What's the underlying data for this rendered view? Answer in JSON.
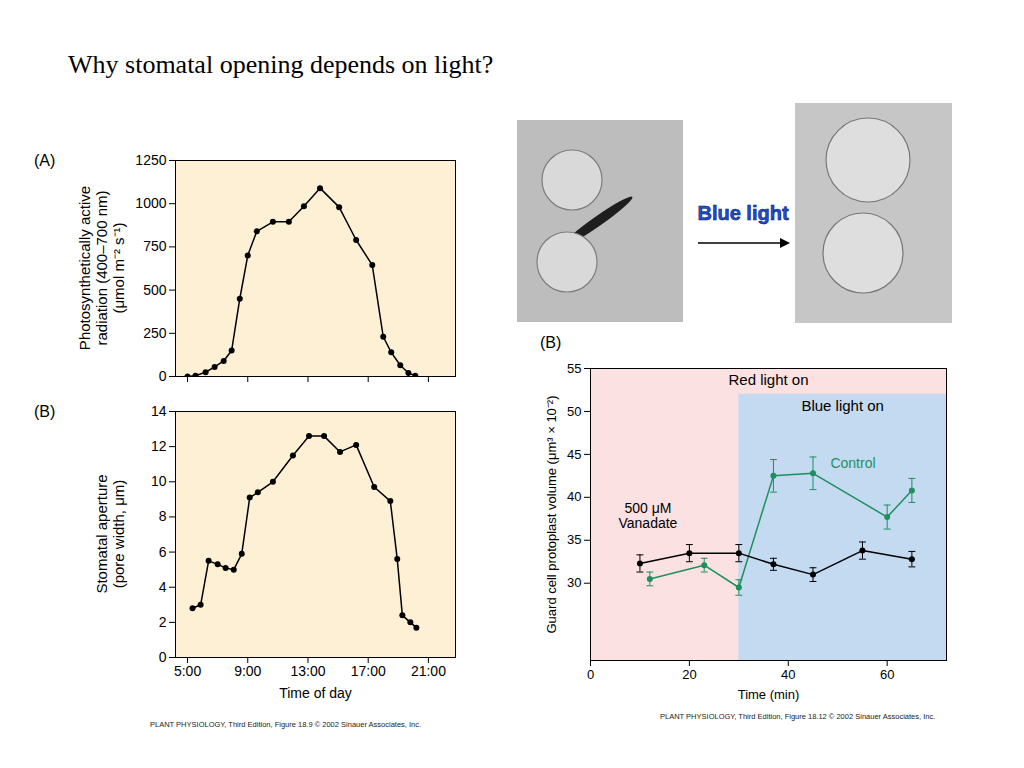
{
  "title": "Why stomatal opening depends on light?",
  "chart_data": [
    {
      "panel": "(A)",
      "type": "line",
      "ylabel": "Photosynthetically active radiation (400–700 nm) (μmol m⁻² s⁻¹)",
      "x": [
        5.0,
        5.53,
        6.2,
        6.8,
        7.4,
        7.93,
        8.47,
        9.0,
        9.6,
        10.67,
        11.73,
        12.73,
        13.8,
        15.07,
        16.2,
        17.27,
        18.0,
        18.53,
        19.13,
        19.67,
        20.13
      ],
      "series": [
        {
          "color": "#000000",
          "marker": "circle",
          "values": [
            0,
            5,
            25,
            55,
            90,
            150,
            450,
            700,
            840,
            895,
            895,
            985,
            1090,
            980,
            790,
            645,
            230,
            140,
            65,
            20,
            5
          ]
        }
      ],
      "xlim": [
        4.2,
        22.8
      ],
      "xticks": [
        {
          "value": 5,
          "label": "5:00"
        },
        {
          "value": 9,
          "label": "9:00"
        },
        {
          "value": 13,
          "label": "13:00"
        },
        {
          "value": 17,
          "label": "17:00"
        },
        {
          "value": 21,
          "label": "21:00"
        }
      ],
      "ylim": [
        0,
        1250
      ],
      "yticks": [
        0,
        250,
        500,
        750,
        1000,
        1250
      ],
      "tick_labels": "y"
    },
    {
      "panel": "(B)",
      "type": "line",
      "xlabel": "Time of day",
      "ylabel": "Stomatal aperture (pore width, μm)",
      "x": [
        5.33,
        5.87,
        6.4,
        7.0,
        7.53,
        8.07,
        8.6,
        9.13,
        9.67,
        10.67,
        12.0,
        13.07,
        14.07,
        15.13,
        16.2,
        17.4,
        18.47,
        18.93,
        19.27,
        19.8,
        20.2
      ],
      "series": [
        {
          "color": "#000000",
          "marker": "circle",
          "values": [
            2.8,
            3.0,
            5.5,
            5.3,
            5.1,
            5.0,
            5.9,
            9.1,
            9.4,
            10.0,
            11.5,
            12.6,
            12.6,
            11.7,
            12.1,
            9.7,
            8.9,
            5.6,
            2.4,
            2.0,
            1.7
          ]
        }
      ],
      "xlim": [
        4.2,
        22.8
      ],
      "xticks": [
        {
          "value": 5,
          "label": "5:00"
        },
        {
          "value": 9,
          "label": "9:00"
        },
        {
          "value": 13,
          "label": "13:00"
        },
        {
          "value": 17,
          "label": "17:00"
        },
        {
          "value": 21,
          "label": "21:00"
        }
      ],
      "ylim": [
        0,
        14
      ],
      "yticks": [
        0,
        2,
        4,
        6,
        8,
        10,
        12,
        14
      ]
    },
    {
      "panel": "(B)",
      "type": "line",
      "xlabel": "Time (min)",
      "ylabel": "Guard cell protoplast volume (μm³ × 10⁻²)",
      "regions": [
        {
          "label": "Red light on",
          "color": "#fbe1e1",
          "x_range": [
            0,
            72
          ],
          "y_range": [
            21,
            55
          ]
        },
        {
          "label": "Blue light on",
          "color": "#c3daf1",
          "x_range": [
            30,
            72
          ],
          "y_range": [
            21,
            52
          ]
        }
      ],
      "series": [
        {
          "name": "Control",
          "color": "#1f8f5f",
          "marker": "circle",
          "x": [
            12,
            23,
            30,
            37,
            45,
            60,
            65
          ],
          "values": [
            30.5,
            32.1,
            29.5,
            42.5,
            42.8,
            37.7,
            40.8
          ],
          "errors": [
            0.8,
            0.8,
            0.9,
            1.9,
            1.9,
            1.4,
            1.4
          ]
        },
        {
          "name": "500 μM Vanadate",
          "color": "#000000",
          "marker": "circle",
          "x": [
            10,
            20,
            30,
            37,
            45,
            55,
            65
          ],
          "values": [
            32.3,
            33.5,
            33.5,
            32.2,
            31.0,
            33.8,
            32.8
          ],
          "errors": [
            1.0,
            1.0,
            1.0,
            0.7,
            0.8,
            1.0,
            0.9
          ]
        }
      ],
      "xlim": [
        0,
        72
      ],
      "xticks": [
        0,
        20,
        40,
        60
      ],
      "ylim": [
        21,
        55
      ],
      "yticks": [
        30,
        35,
        40,
        45,
        50,
        55
      ]
    }
  ],
  "photos": {
    "arrow_label": "Blue light"
  },
  "captions": [
    "PLANT PHYSIOLOGY, Third Edition, Figure 18.9 © 2002 Sinauer Associates, Inc.",
    "PLANT PHYSIOLOGY, Third Edition, Figure 18.12 © 2002 Sinauer Associates, Inc."
  ]
}
